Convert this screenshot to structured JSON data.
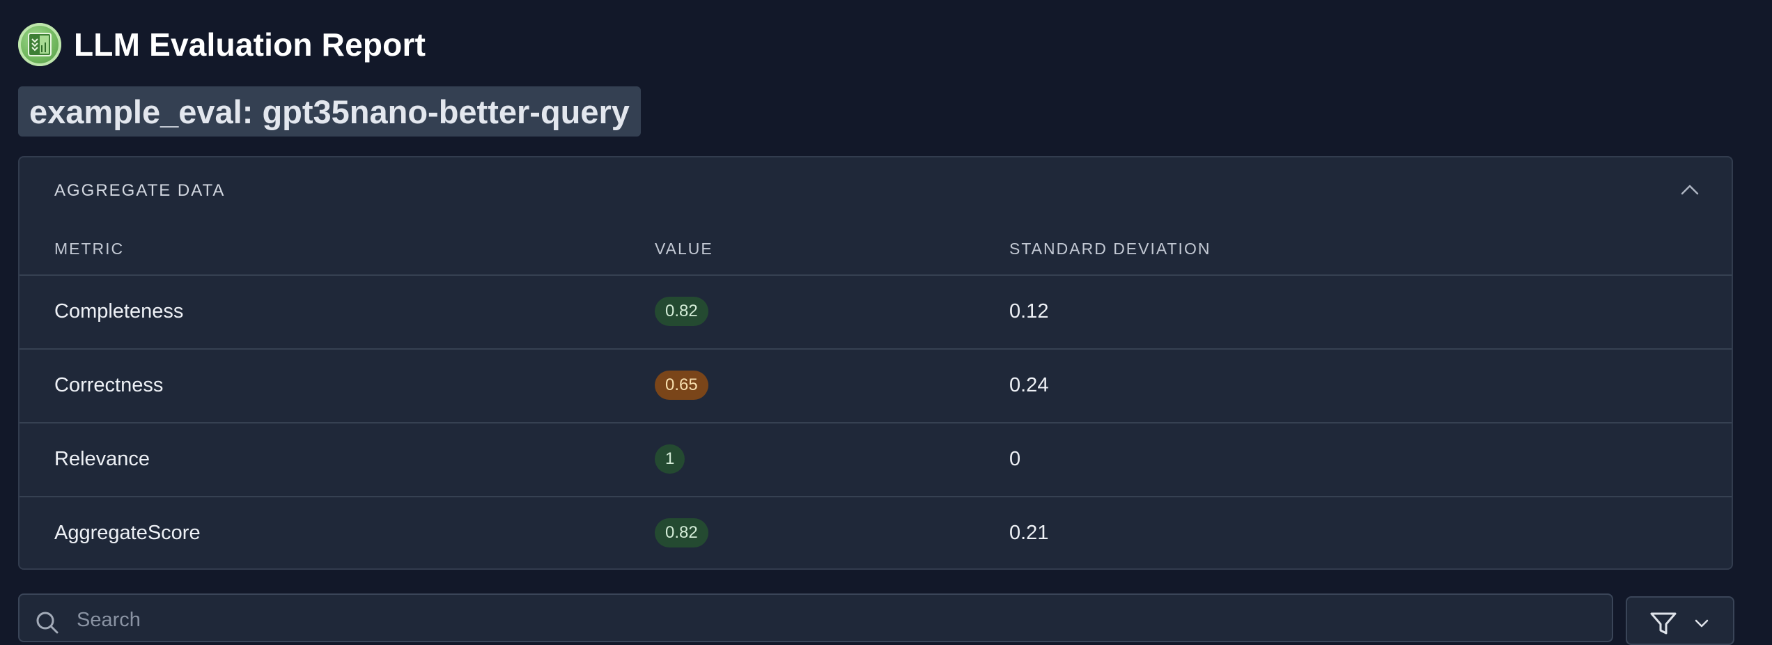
{
  "app": {
    "title": "LLM Evaluation Report"
  },
  "eval": {
    "name": "example_eval: gpt35nano-better-query"
  },
  "aggregate": {
    "title": "AGGREGATE DATA",
    "columns": [
      "METRIC",
      "VALUE",
      "STANDARD DEVIATION"
    ],
    "rows": [
      {
        "metric": "Completeness",
        "value": "0.82",
        "status": "good",
        "std_dev": "0.12"
      },
      {
        "metric": "Correctness",
        "value": "0.65",
        "status": "warning",
        "std_dev": "0.24"
      },
      {
        "metric": "Relevance",
        "value": "1",
        "status": "good",
        "std_dev": "0"
      },
      {
        "metric": "AggregateScore",
        "value": "0.82",
        "status": "good",
        "std_dev": "0.21"
      }
    ]
  },
  "search": {
    "placeholder": "Search"
  },
  "icons": {
    "logo": "evaluation-logo-icon",
    "collapse": "chevron-up-icon",
    "search": "search-icon",
    "filter": "filter-icon",
    "dropdown": "chevron-down-icon"
  },
  "colors": {
    "background": "#121829",
    "card": "#1f2839",
    "badge_good": "#244a31",
    "badge_warning": "#7a4519"
  }
}
